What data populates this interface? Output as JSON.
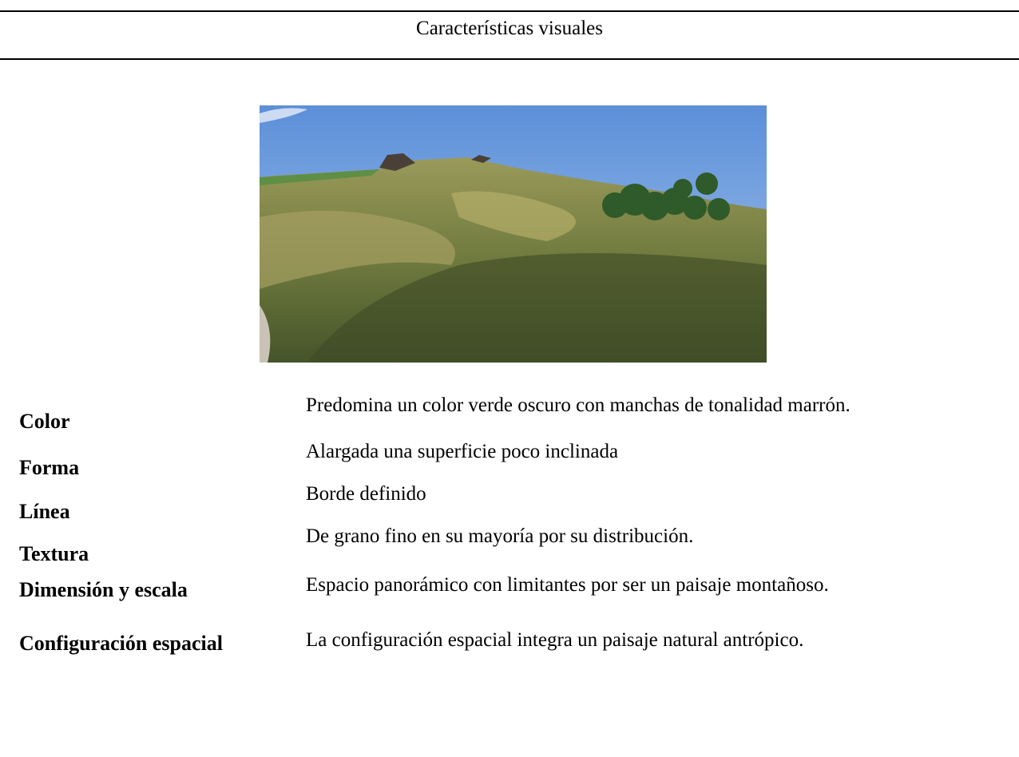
{
  "header": {
    "title": "Características visuales"
  },
  "table": {
    "rows": [
      [
        "Color",
        "Predomina un color verde oscuro con manchas de tonalidad marrón."
      ],
      [
        "Forma",
        "Alargada una superficie poco inclinada"
      ],
      [
        "Línea",
        "Borde definido"
      ],
      [
        "Textura",
        "De grano fino en su mayoría por su distribución."
      ],
      [
        "Dimensión y escala",
        "Espacio panorámico con limitantes por ser un paisaje montañoso."
      ],
      [
        "Configuración espacial",
        "La configuración espacial integra un paisaje natural antrópico."
      ]
    ]
  }
}
